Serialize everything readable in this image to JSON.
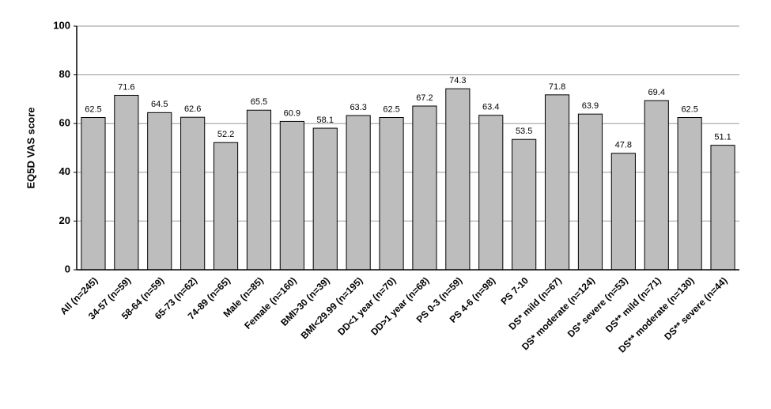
{
  "chart_data": {
    "type": "bar",
    "y_label": "EQ5D VAS score",
    "categories": [
      "All (n=245)",
      "34-57 (n=59)",
      "58-64 (n=59)",
      "65-73 (n=62)",
      "74-89 (n=65)",
      "Male (n=85)",
      "Female (n=160)",
      "BMI>30 (n=39)",
      "BMI<29.99 (n=195)",
      "DD<1 year (n=70)",
      "DD>1 year (n=68)",
      "PS 0-3 (n=59)",
      "PS 4-6 (n=98)",
      "PS 7-10",
      "DS* mild (n=67)",
      "DS* moderate (n=124)",
      "DS* severe (n=53)",
      "DS** mild (n=71)",
      "DS** moderate (n=130)",
      "DS** severe (n=44)"
    ],
    "values": [
      62.5,
      71.6,
      64.5,
      62.6,
      52.2,
      65.5,
      60.9,
      58.1,
      63.3,
      62.5,
      67.2,
      74.3,
      63.4,
      53.5,
      71.8,
      63.9,
      47.8,
      69.4,
      62.5,
      51.1
    ],
    "color": "#bdbdbd",
    "ylim": [
      0,
      100
    ],
    "yticks": [
      0,
      20,
      40,
      60,
      80,
      100
    ],
    "grid": true
  }
}
